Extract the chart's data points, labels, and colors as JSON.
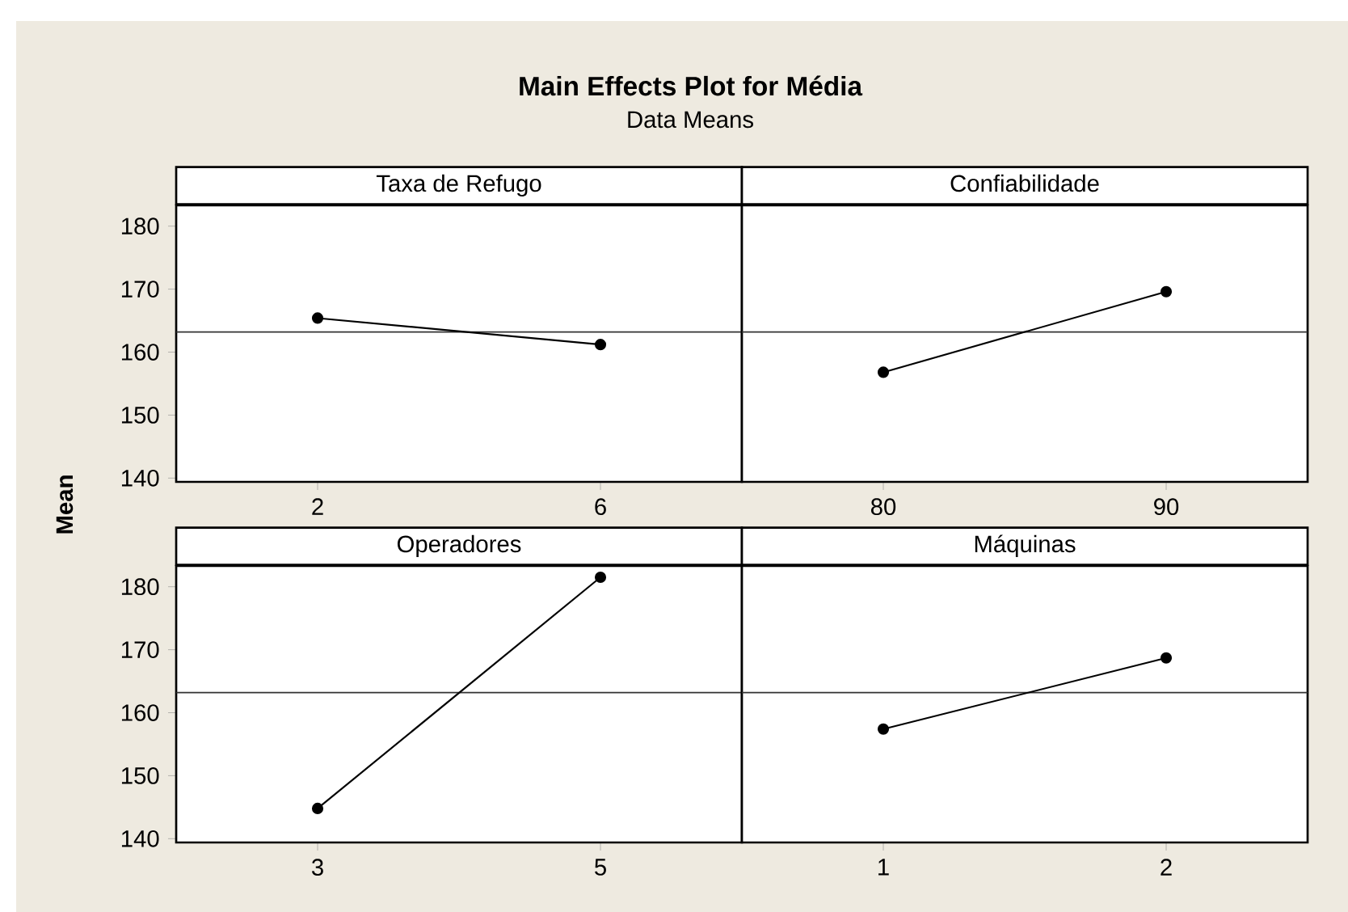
{
  "chart_data": [
    {
      "type": "line",
      "title": "Taxa de Refugo",
      "annotations": [
        "Main Effects Plot for Média",
        "Data Means"
      ],
      "ylabel": "Mean",
      "categories": [
        "2",
        "6"
      ],
      "values": [
        165.4,
        161.2
      ],
      "color": "#000000",
      "marker": "circle",
      "ylim": [
        139.4,
        183.3
      ],
      "yticks": [
        140,
        150,
        160,
        170,
        180
      ],
      "ref_lines": [
        {
          "axis": "y",
          "value": 163.2
        }
      ]
    },
    {
      "type": "line",
      "title": "Confiabilidade",
      "categories": [
        "80",
        "90"
      ],
      "values": [
        156.8,
        169.6
      ],
      "color": "#000000",
      "marker": "circle",
      "ylim": [
        139.4,
        183.3
      ],
      "yticks": [
        140,
        150,
        160,
        170,
        180
      ],
      "ref_lines": [
        {
          "axis": "y",
          "value": 163.2
        }
      ],
      "tick_labels": "x"
    },
    {
      "type": "line",
      "title": "Operadores",
      "categories": [
        "3",
        "5"
      ],
      "values": [
        144.8,
        181.5
      ],
      "color": "#000000",
      "marker": "circle",
      "ylim": [
        139.4,
        183.3
      ],
      "yticks": [
        140,
        150,
        160,
        170,
        180
      ],
      "ref_lines": [
        {
          "axis": "y",
          "value": 163.2
        }
      ]
    },
    {
      "type": "line",
      "title": "Máquinas",
      "categories": [
        "1",
        "2"
      ],
      "values": [
        157.4,
        168.7
      ],
      "color": "#000000",
      "marker": "circle",
      "ylim": [
        139.4,
        183.3
      ],
      "yticks": [
        140,
        150,
        160,
        170,
        180
      ],
      "ref_lines": [
        {
          "axis": "y",
          "value": 163.2
        }
      ],
      "tick_labels": "x"
    }
  ]
}
